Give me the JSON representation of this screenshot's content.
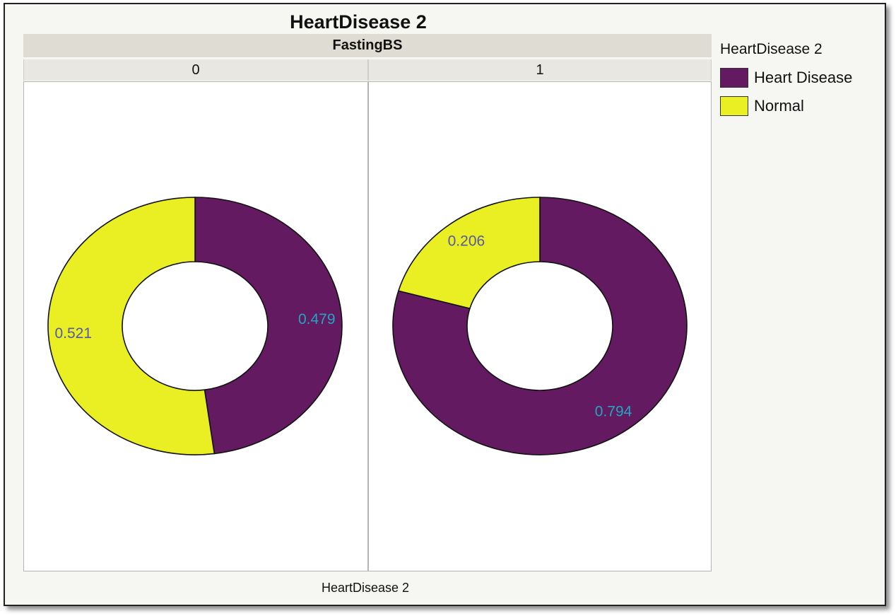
{
  "chart_data": {
    "type": "donut",
    "title": "HeartDisease 2",
    "facet_title": "FastingBS",
    "xlabel": "HeartDisease 2",
    "legend": {
      "title": "HeartDisease 2",
      "entries": [
        {
          "label": "Heart Disease",
          "color": "#641a60"
        },
        {
          "label": "Normal",
          "color": "#e9ef22"
        }
      ]
    },
    "panels": [
      {
        "label": "0",
        "slices": [
          {
            "category": "Heart Disease",
            "value": 0.479,
            "label": "0.479",
            "color": "#641a60",
            "label_color": "#22a6c0"
          },
          {
            "category": "Normal",
            "value": 0.521,
            "label": "0.521",
            "color": "#e9ef22",
            "label_color": "#5658a8"
          }
        ]
      },
      {
        "label": "1",
        "slices": [
          {
            "category": "Heart Disease",
            "value": 0.794,
            "label": "0.794",
            "color": "#641a60",
            "label_color": "#22a6c0"
          },
          {
            "category": "Normal",
            "value": 0.206,
            "label": "0.206",
            "color": "#e9ef22",
            "label_color": "#5658a8"
          }
        ]
      }
    ]
  }
}
